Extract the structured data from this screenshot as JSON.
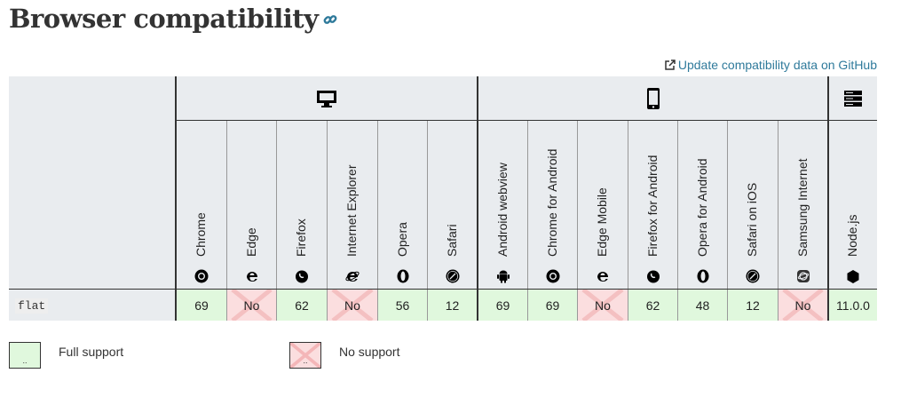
{
  "title": "Browser compatibility",
  "anchor_icon": "link-icon",
  "github_link": "Update compatibility data on GitHub",
  "platforms": [
    {
      "name": "desktop-icon"
    },
    {
      "name": "mobile-icon"
    },
    {
      "name": "server-icon"
    }
  ],
  "browsers": [
    {
      "name": "Chrome",
      "icon": "chrome-icon",
      "value": "69",
      "support": "yes"
    },
    {
      "name": "Edge",
      "icon": "edge-icon",
      "value": "No",
      "support": "no"
    },
    {
      "name": "Firefox",
      "icon": "firefox-icon",
      "value": "62",
      "support": "yes"
    },
    {
      "name": "Internet Explorer",
      "icon": "ie-icon",
      "value": "No",
      "support": "no"
    },
    {
      "name": "Opera",
      "icon": "opera-icon",
      "value": "56",
      "support": "yes"
    },
    {
      "name": "Safari",
      "icon": "safari-icon",
      "value": "12",
      "support": "yes"
    },
    {
      "name": "Android webview",
      "icon": "android-icon",
      "value": "69",
      "support": "yes"
    },
    {
      "name": "Chrome for Android",
      "icon": "chrome-icon",
      "value": "69",
      "support": "yes"
    },
    {
      "name": "Edge Mobile",
      "icon": "edge-icon",
      "value": "No",
      "support": "no"
    },
    {
      "name": "Firefox for Android",
      "icon": "firefox-icon",
      "value": "62",
      "support": "yes"
    },
    {
      "name": "Opera for Android",
      "icon": "opera-icon",
      "value": "48",
      "support": "yes"
    },
    {
      "name": "Safari on iOS",
      "icon": "safari-icon",
      "value": "12",
      "support": "yes"
    },
    {
      "name": "Samsung Internet",
      "icon": "samsung-internet-icon",
      "value": "No",
      "support": "no"
    },
    {
      "name": "Node.js",
      "icon": "nodejs-icon",
      "value": "11.0.0",
      "support": "yes"
    }
  ],
  "feature": "flat",
  "legend": {
    "full": "Full support",
    "none": "No support",
    "marker": ".."
  },
  "colors": {
    "yes": "#e0f8dd",
    "no": "#fbdedf",
    "link": "#2f7a9b"
  }
}
